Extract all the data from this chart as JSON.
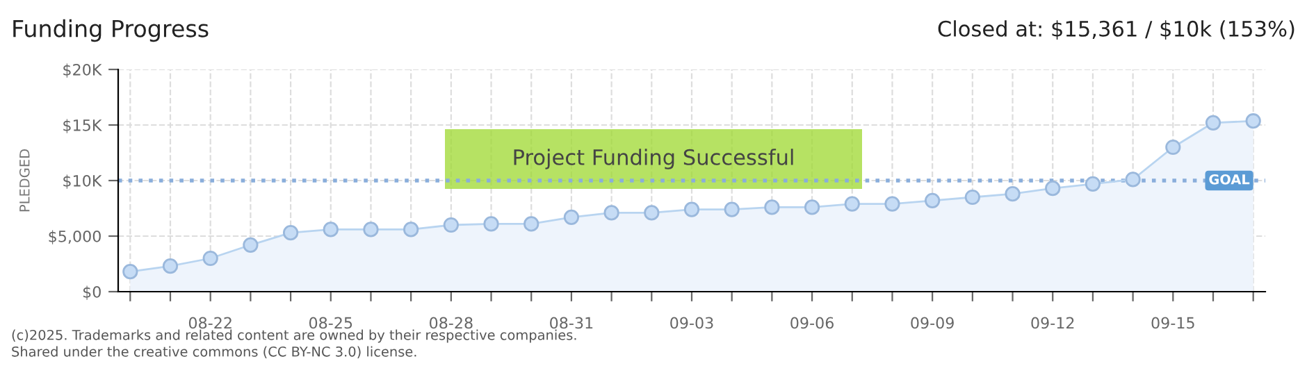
{
  "chart_data": {
    "type": "area",
    "title": "Funding Progress",
    "subtitle": "Closed at: $15,361 / $10k (153%)",
    "ylabel": "PLEDGED",
    "categories": [
      null,
      null,
      "08-22",
      null,
      null,
      "08-25",
      null,
      null,
      "08-28",
      null,
      null,
      "08-31",
      null,
      null,
      "09-03",
      null,
      null,
      "09-06",
      null,
      null,
      "09-09",
      null,
      null,
      "09-12",
      null,
      null,
      "09-15",
      null,
      null
    ],
    "series": [
      {
        "color": "#b8d4f0",
        "values": [
          1800,
          2300,
          3000,
          4200,
          5300,
          5600,
          5600,
          5600,
          6000,
          6100,
          6100,
          6700,
          7100,
          7100,
          7400,
          7400,
          7600,
          7600,
          7900,
          7900,
          8200,
          8500,
          8800,
          9300,
          9700,
          10100,
          13000,
          15200,
          15361
        ]
      }
    ],
    "marker": "circle",
    "grid": true,
    "ylim": [
      0,
      20000
    ],
    "yticks": [
      {
        "value": 0,
        "label": "$0"
      },
      {
        "value": 5000,
        "label": "$5,000"
      },
      {
        "value": 10000,
        "label": "$10K"
      },
      {
        "value": 15000,
        "label": "$15K"
      },
      {
        "value": 20000,
        "label": "$20K"
      }
    ],
    "ref_lines": [
      {
        "axis": "y",
        "value": 10000,
        "label": "GOAL",
        "color": "#8aaedb",
        "line_style": "dotted"
      }
    ],
    "annotations": [
      "Project Funding Successful",
      "(c)2025. Trademarks and related content are owned by their respective companies.",
      "Shared under the creative commons (CC BY-NC 3.0) license."
    ]
  }
}
